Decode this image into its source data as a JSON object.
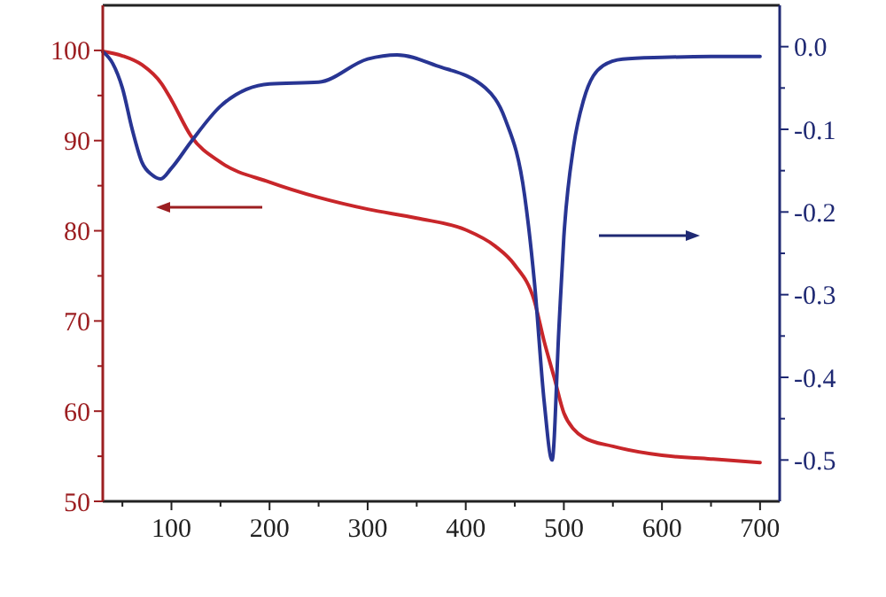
{
  "chart_data": {
    "type": "line",
    "xlim": [
      30,
      720
    ],
    "xticks": [
      {
        "value": 50,
        "label": null
      },
      100,
      {
        "value": 150,
        "label": null
      },
      200,
      {
        "value": 250,
        "label": null
      },
      300,
      {
        "value": 350,
        "label": null
      },
      400,
      {
        "value": 450,
        "label": null
      },
      500,
      {
        "value": 550,
        "label": null
      },
      600,
      {
        "value": 650,
        "label": null
      },
      700
    ],
    "ylim": [
      50,
      105
    ],
    "yticks": [
      50,
      {
        "value": 55,
        "label": null
      },
      60,
      {
        "value": 65,
        "label": null
      },
      70,
      {
        "value": 75,
        "label": null
      },
      80,
      {
        "value": 85,
        "label": null
      },
      90,
      {
        "value": 95,
        "label": null
      },
      100
    ],
    "y2lim": [
      -0.55,
      0.05
    ],
    "y2ticks": [
      {
        "value": -0.5,
        "label": "-0.5"
      },
      {
        "value": -0.45,
        "label": null
      },
      {
        "value": -0.4,
        "label": "-0.4"
      },
      {
        "value": -0.35,
        "label": null
      },
      {
        "value": -0.3,
        "label": "-0.3"
      },
      {
        "value": -0.25,
        "label": null
      },
      {
        "value": -0.2,
        "label": "-0.2"
      },
      {
        "value": -0.15,
        "label": null
      },
      {
        "value": -0.1,
        "label": "-0.1"
      },
      {
        "value": -0.05,
        "label": null
      },
      {
        "value": 0,
        "label": "0.0"
      }
    ],
    "marker": "none",
    "line_style": "solid",
    "grid": false,
    "series": [
      {
        "color": "#c8262a",
        "x": [
          30,
          50,
          70,
          90,
          100,
          120,
          150,
          200,
          250,
          300,
          350,
          400,
          430,
          450,
          470,
          480,
          490,
          500,
          510,
          520,
          550,
          600,
          650,
          700
        ],
        "values": [
          99.9,
          99.4,
          98.4,
          96.3,
          94.5,
          90.5,
          87.6,
          85.4,
          83.7,
          82.4,
          81.4,
          80.1,
          78.3,
          76.2,
          72.2,
          67.7,
          63.8,
          59.8,
          58.0,
          57.1,
          56.1,
          55.1,
          54.7,
          54.3
        ]
      },
      {
        "color": "#283593",
        "axis": "y2",
        "x": [
          30,
          40,
          50,
          60,
          70,
          80,
          89,
          100,
          120,
          150,
          200,
          250,
          300,
          330,
          370,
          420,
          440,
          460,
          470,
          480,
          488,
          495,
          500,
          510,
          520,
          540,
          560,
          600,
          650,
          700
        ],
        "values": [
          -0.006,
          -0.02,
          -0.05,
          -0.1,
          -0.14,
          -0.155,
          -0.16,
          -0.147,
          -0.115,
          -0.072,
          -0.045,
          -0.043,
          -0.015,
          -0.01,
          -0.023,
          -0.05,
          -0.087,
          -0.18,
          -0.285,
          -0.43,
          -0.5,
          -0.34,
          -0.23,
          -0.12,
          -0.065,
          -0.023,
          -0.015,
          -0.013,
          -0.012,
          -0.012
        ]
      }
    ]
  }
}
